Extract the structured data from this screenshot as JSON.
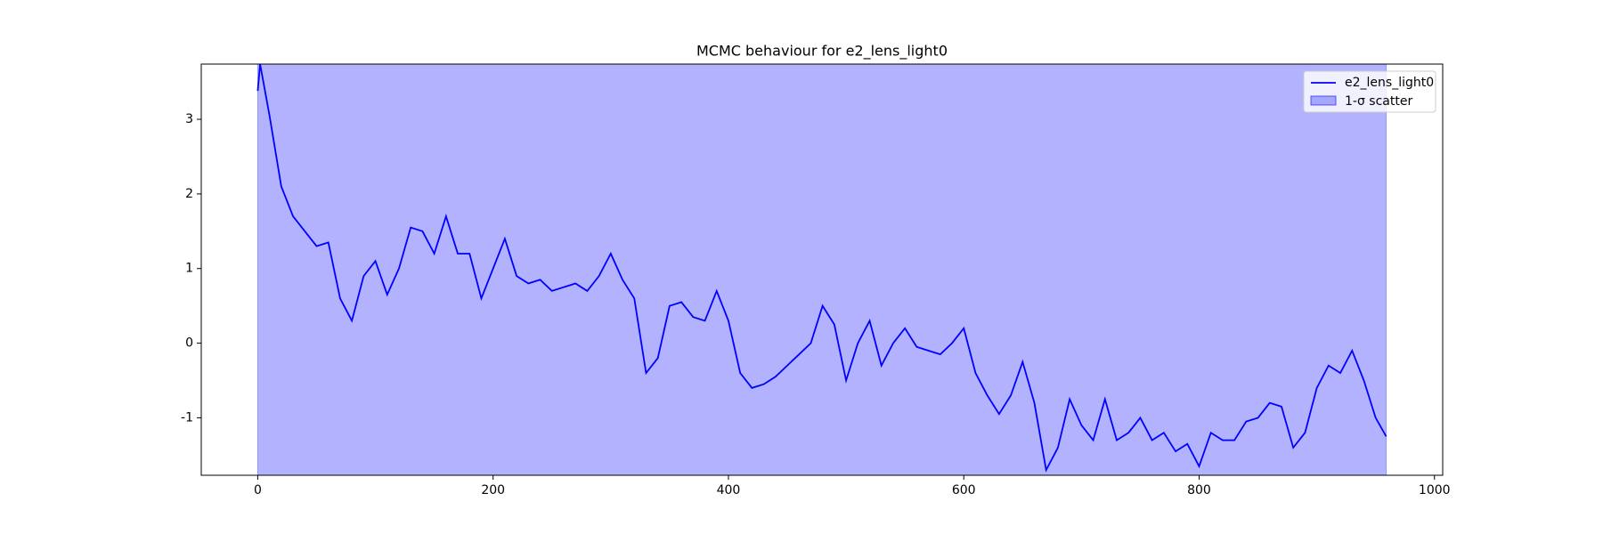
{
  "chart_data": {
    "type": "line",
    "title": "MCMC behaviour for e2_lens_light0",
    "xlim": [
      -48,
      1007
    ],
    "ylim": [
      -1.77,
      3.74
    ],
    "xticks": [
      0,
      200,
      400,
      600,
      800,
      1000
    ],
    "yticks": [
      -1,
      0,
      1,
      2,
      3
    ],
    "legend": "upper right",
    "x": [
      0,
      2,
      10,
      20,
      30,
      40,
      50,
      60,
      70,
      80,
      90,
      100,
      110,
      120,
      130,
      140,
      150,
      160,
      170,
      180,
      190,
      200,
      210,
      220,
      230,
      240,
      250,
      260,
      270,
      280,
      290,
      300,
      310,
      320,
      330,
      340,
      350,
      360,
      370,
      380,
      390,
      400,
      410,
      420,
      430,
      440,
      450,
      460,
      470,
      480,
      490,
      500,
      510,
      520,
      530,
      540,
      550,
      560,
      570,
      580,
      590,
      600,
      610,
      620,
      630,
      640,
      650,
      660,
      670,
      680,
      690,
      700,
      710,
      720,
      730,
      740,
      750,
      760,
      770,
      780,
      790,
      800,
      810,
      820,
      830,
      840,
      850,
      860,
      870,
      880,
      890,
      900,
      910,
      920,
      930,
      940,
      950,
      959
    ],
    "series": [
      {
        "name": "e2_lens_light0",
        "color": "#0000ff",
        "values": [
          3.38,
          3.74,
          3.05,
          2.1,
          1.7,
          1.5,
          1.3,
          1.35,
          0.6,
          0.3,
          0.9,
          1.1,
          0.65,
          1.0,
          1.55,
          1.5,
          1.2,
          1.7,
          1.2,
          1.2,
          0.6,
          1.0,
          1.4,
          0.9,
          0.8,
          0.85,
          0.7,
          0.75,
          0.8,
          0.7,
          0.9,
          1.2,
          0.85,
          0.6,
          -0.4,
          -0.2,
          0.5,
          0.55,
          0.35,
          0.3,
          0.7,
          0.3,
          -0.4,
          -0.6,
          -0.55,
          -0.45,
          -0.3,
          -0.15,
          0.0,
          0.5,
          0.25,
          -0.5,
          0.0,
          0.3,
          -0.3,
          0.0,
          0.2,
          -0.05,
          -0.1,
          -0.15,
          0.0,
          0.2,
          -0.4,
          -0.7,
          -0.95,
          -0.7,
          -0.25,
          -0.8,
          -1.7,
          -1.4,
          -0.75,
          -1.1,
          -1.3,
          -0.75,
          -1.3,
          -1.2,
          -1.0,
          -1.3,
          -1.2,
          -1.45,
          -1.35,
          -1.65,
          -1.2,
          -1.3,
          -1.3,
          -1.05,
          -1.0,
          -0.8,
          -0.85,
          -1.4,
          -1.2,
          -0.6,
          -0.3,
          -0.4,
          -0.1,
          -0.5,
          -1.0,
          -1.25
        ]
      }
    ],
    "band": {
      "name": "1-σ scatter",
      "color": "#0000ff",
      "opacity": 0.3,
      "x": [
        0,
        959
      ],
      "lower": [
        -1.77,
        -1.77
      ],
      "upper": [
        3.74,
        3.74
      ]
    }
  }
}
